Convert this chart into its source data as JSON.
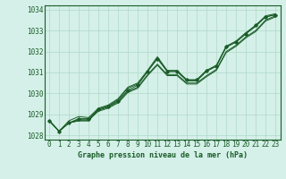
{
  "title": "Graphe pression niveau de la mer (hPa)",
  "ylim": [
    1027.8,
    1034.2
  ],
  "xlim": [
    -0.5,
    23.5
  ],
  "yticks": [
    1028,
    1029,
    1030,
    1031,
    1032,
    1033,
    1034
  ],
  "xticks": [
    0,
    1,
    2,
    3,
    4,
    5,
    6,
    7,
    8,
    9,
    10,
    11,
    12,
    13,
    14,
    15,
    16,
    17,
    18,
    19,
    20,
    21,
    22,
    23
  ],
  "bg_color": "#d4f0e8",
  "grid_color": "#b0d8c8",
  "line_color": "#1a5c28",
  "line1": [
    1028.7,
    1028.2,
    1028.6,
    1028.7,
    1028.7,
    1029.25,
    1029.4,
    1029.7,
    1030.25,
    1030.45,
    1031.05,
    1031.7,
    1031.05,
    1031.05,
    1030.6,
    1030.6,
    1031.05,
    1031.3,
    1032.2,
    1032.45,
    1032.85,
    1033.2,
    1033.65,
    1033.75
  ],
  "line2": [
    1028.7,
    1028.2,
    1028.6,
    1028.7,
    1028.7,
    1029.2,
    1029.35,
    1029.6,
    1030.1,
    1030.3,
    1030.9,
    1031.4,
    1030.9,
    1030.9,
    1030.5,
    1030.5,
    1030.85,
    1031.15,
    1032.0,
    1032.3,
    1032.7,
    1033.0,
    1033.5,
    1033.7
  ],
  "line3_x": [
    0,
    1,
    2,
    3,
    4,
    5,
    6,
    7,
    8,
    9,
    10,
    11,
    12,
    13,
    14,
    15,
    16,
    17,
    18,
    19,
    20,
    21,
    22,
    23
  ],
  "line3": [
    1028.7,
    1028.2,
    1028.7,
    1028.9,
    1028.85,
    1029.3,
    1029.45,
    1029.75,
    1030.3,
    1030.5,
    1031.1,
    1031.75,
    1031.1,
    1031.1,
    1030.65,
    1030.65,
    1031.1,
    1031.35,
    1032.25,
    1032.5,
    1032.9,
    1033.25,
    1033.7,
    1033.8
  ],
  "line4": [
    1028.7,
    1028.2,
    1028.6,
    1028.75,
    1028.75,
    1029.15,
    1029.3,
    1029.55,
    1030.05,
    1030.25,
    1030.85,
    1031.35,
    1030.85,
    1030.85,
    1030.45,
    1030.45,
    1030.8,
    1031.1,
    1031.95,
    1032.25,
    1032.65,
    1032.95,
    1033.45,
    1033.65
  ],
  "marker_line": [
    1028.7,
    1028.2,
    1028.6,
    1028.8,
    1028.8,
    1029.25,
    1029.38,
    1029.65,
    1030.15,
    1030.4,
    1031.05,
    1031.65,
    1031.05,
    1031.05,
    1030.65,
    1030.65,
    1031.1,
    1031.3,
    1032.25,
    1032.45,
    1032.85,
    1033.25,
    1033.65,
    1033.75
  ]
}
